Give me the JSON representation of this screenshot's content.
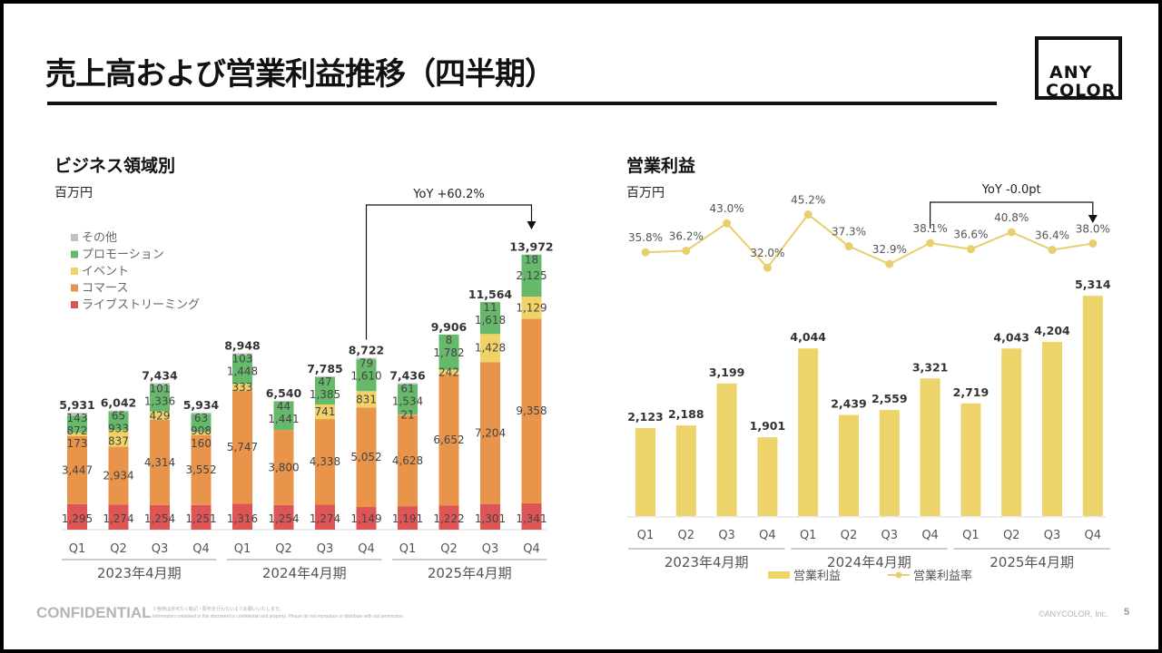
{
  "page": {
    "title": "売上高および営業利益推移（四半期）",
    "logo_line1": "ANY",
    "logo_line2": "COLOR",
    "footer": {
      "confidential": "CONFIDENTIAL",
      "note_jp": "※各時は許可なく転記・配布を行わないようお願いいたします。",
      "note_en": "Information contained in this document is confidential and property. Please do not reproduce or distribute with out permission.",
      "copyright": "©ANYCOLOR, Inc.",
      "page_number": "5"
    }
  },
  "left_panel": {
    "title": "ビジネス領域別",
    "unit": "百万円",
    "annotation": "YoY +60.2%"
  },
  "right_panel": {
    "title": "営業利益",
    "unit": "百万円",
    "annotation": "YoY -0.0pt"
  },
  "colors": {
    "livestreaming": "#dd5555",
    "commerce": "#e8944a",
    "event": "#f0d266",
    "promotion": "#66b96a",
    "other": "#c0c0c0",
    "op_profit": "#ecd36a",
    "op_margin": "#e8cf6e"
  },
  "chart_data": [
    {
      "type": "bar",
      "stacked": true,
      "title": "ビジネス領域別",
      "ylabel": "百万円",
      "categories": [
        "Q1",
        "Q2",
        "Q3",
        "Q4",
        "Q1",
        "Q2",
        "Q3",
        "Q4",
        "Q1",
        "Q2",
        "Q3",
        "Q4"
      ],
      "groups": [
        {
          "label": "2023年4月期",
          "start": 0,
          "end": 3
        },
        {
          "label": "2024年4月期",
          "start": 4,
          "end": 7
        },
        {
          "label": "2025年4月期",
          "start": 8,
          "end": 11
        }
      ],
      "series": [
        {
          "name": "ライブストリーミング",
          "key": "livestreaming",
          "values": [
            1295,
            1274,
            1254,
            1251,
            1316,
            1254,
            1274,
            1149,
            1191,
            1222,
            1301,
            1341
          ]
        },
        {
          "name": "コマース",
          "key": "commerce",
          "values": [
            3447,
            2934,
            4314,
            3552,
            5747,
            3800,
            4338,
            5052,
            4628,
            6652,
            7204,
            9358
          ]
        },
        {
          "name": "イベント",
          "key": "event",
          "values": [
            173,
            837,
            429,
            160,
            333,
            0,
            741,
            831,
            21,
            242,
            1428,
            1129
          ]
        },
        {
          "name": "プロモーション",
          "key": "promotion",
          "values": [
            872,
            933,
            1336,
            908,
            1448,
            1441,
            1385,
            1610,
            1534,
            1782,
            1618,
            2125
          ]
        },
        {
          "name": "その他",
          "key": "other",
          "values": [
            143,
            65,
            101,
            63,
            103,
            44,
            47,
            79,
            61,
            8,
            11,
            18
          ]
        }
      ],
      "totals": [
        5931,
        6042,
        7434,
        5934,
        8948,
        6540,
        7785,
        8722,
        7436,
        9906,
        11564,
        13972
      ],
      "legend": [
        "その他",
        "プロモーション",
        "イベント",
        "コマース",
        "ライブストリーミング"
      ],
      "legend_position": "top-left",
      "ylim": [
        0,
        14500
      ],
      "annotation": {
        "text": "YoY +60.2%",
        "from_index": 7,
        "to_index": 11
      }
    },
    {
      "type": "bar+line",
      "title": "営業利益",
      "ylabel": "百万円",
      "categories": [
        "Q1",
        "Q2",
        "Q3",
        "Q4",
        "Q1",
        "Q2",
        "Q3",
        "Q4",
        "Q1",
        "Q2",
        "Q3",
        "Q4"
      ],
      "groups": [
        {
          "label": "2023年4月期",
          "start": 0,
          "end": 3
        },
        {
          "label": "2024年4月期",
          "start": 4,
          "end": 7
        },
        {
          "label": "2025年4月期",
          "start": 8,
          "end": 11
        }
      ],
      "series": [
        {
          "name": "営業利益",
          "type": "bar",
          "values": [
            2123,
            2188,
            3199,
            1901,
            4044,
            2439,
            2559,
            3321,
            2719,
            4043,
            4204,
            5314
          ]
        },
        {
          "name": "営業利益率",
          "type": "line",
          "unit": "%",
          "values": [
            35.8,
            36.2,
            43.0,
            32.0,
            45.2,
            37.3,
            32.9,
            38.1,
            36.6,
            40.8,
            36.4,
            38.0
          ]
        }
      ],
      "legend": [
        "営業利益",
        "営業利益率"
      ],
      "legend_position": "bottom",
      "bar_ylim": [
        0,
        5800
      ],
      "line_ylim": [
        30,
        48
      ],
      "annotation": {
        "text": "YoY -0.0pt",
        "from_index": 7,
        "to_index": 11
      }
    }
  ]
}
